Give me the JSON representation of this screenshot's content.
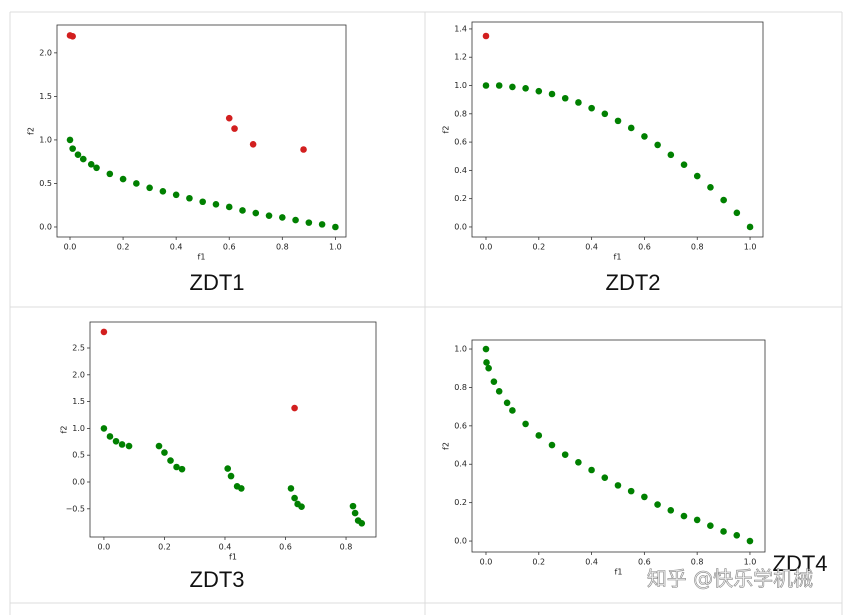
{
  "chart_data": [
    {
      "type": "scatter",
      "title": "ZDT1",
      "xlabel": "f1",
      "ylabel": "f2",
      "xlim": [
        -0.049,
        1.04
      ],
      "ylim": [
        -0.115,
        2.32
      ],
      "xticks": [
        {
          "value": 0,
          "label": "0.0"
        },
        0.2,
        0.4,
        0.6,
        0.8,
        {
          "value": 1,
          "label": "1.0"
        }
      ],
      "yticks": [
        {
          "value": 0,
          "label": "0.0"
        },
        0.5,
        {
          "value": 1,
          "label": "1.0"
        },
        1.5,
        {
          "value": 2,
          "label": "2.0"
        }
      ],
      "series": [
        {
          "color": "#008000",
          "x": [
            0,
            0.01,
            0.03,
            0.05,
            0.08,
            0.1,
            0.15,
            0.2,
            0.25,
            0.3,
            0.35,
            0.4,
            0.45,
            0.5,
            0.55,
            0.6,
            0.65,
            0.7,
            0.75,
            0.8,
            0.85,
            0.9,
            0.95,
            1.0
          ],
          "values": [
            1,
            0.9,
            0.83,
            0.78,
            0.72,
            0.68,
            0.61,
            0.55,
            0.5,
            0.45,
            0.41,
            0.37,
            0.33,
            0.29,
            0.26,
            0.23,
            0.19,
            0.16,
            0.13,
            0.11,
            0.08,
            0.05,
            0.03,
            0
          ]
        },
        {
          "color": "#d21f1f",
          "x": [
            0,
            0.01,
            0.6,
            0.62,
            0.69,
            0.88
          ],
          "values": [
            2.2,
            2.19,
            1.25,
            1.13,
            0.95,
            0.89
          ]
        }
      ]
    },
    {
      "type": "scatter",
      "title": "ZDT2",
      "xlabel": "f1",
      "ylabel": "f2",
      "xlim": [
        -0.053,
        1.049
      ],
      "ylim": [
        -0.071,
        1.449
      ],
      "xticks": [
        {
          "value": 0,
          "label": "0.0"
        },
        0.2,
        0.4,
        0.6,
        0.8,
        {
          "value": 1,
          "label": "1.0"
        }
      ],
      "yticks": [
        {
          "value": 0,
          "label": "0.0"
        },
        0.2,
        0.4,
        0.6,
        0.8,
        {
          "value": 1,
          "label": "1.0"
        },
        1.2,
        1.4
      ],
      "series": [
        {
          "color": "#008000",
          "x": [
            0,
            0.05,
            0.1,
            0.15,
            0.2,
            0.25,
            0.3,
            0.35,
            0.4,
            0.45,
            0.5,
            0.55,
            0.6,
            0.65,
            0.7,
            0.75,
            0.8,
            0.85,
            0.9,
            0.95,
            1.0
          ],
          "values": [
            1,
            1,
            0.99,
            0.98,
            0.96,
            0.94,
            0.91,
            0.88,
            0.84,
            0.8,
            0.75,
            0.7,
            0.64,
            0.58,
            0.51,
            0.44,
            0.36,
            0.28,
            0.19,
            0.1,
            0
          ]
        },
        {
          "color": "#d21f1f",
          "x": [
            0
          ],
          "values": [
            1.35
          ]
        }
      ]
    },
    {
      "type": "scatter",
      "title": "ZDT3",
      "xlabel": "f1",
      "ylabel": "f2",
      "xlim": [
        -0.046,
        0.899
      ],
      "ylim": [
        -1.026,
        2.985
      ],
      "xticks": [
        {
          "value": 0,
          "label": "0.0"
        },
        0.2,
        0.4,
        0.6,
        0.8
      ],
      "yticks": [
        {
          "value": -0.5,
          "label": "−0.5"
        },
        {
          "value": 0,
          "label": "0.0"
        },
        0.5,
        {
          "value": 1,
          "label": "1.0"
        },
        1.5,
        {
          "value": 2,
          "label": "2.0"
        },
        2.5
      ],
      "series": [
        {
          "color": "#008000",
          "x": [
            0,
            0.02,
            0.04,
            0.06,
            0.083,
            0.182,
            0.2,
            0.22,
            0.24,
            0.258,
            0.409,
            0.42,
            0.44,
            0.454,
            0.618,
            0.63,
            0.64,
            0.653,
            0.823,
            0.83,
            0.84,
            0.852
          ],
          "values": [
            1,
            0.85,
            0.76,
            0.7,
            0.67,
            0.67,
            0.55,
            0.4,
            0.28,
            0.24,
            0.25,
            0.11,
            -0.08,
            -0.12,
            -0.12,
            -0.3,
            -0.41,
            -0.46,
            -0.45,
            -0.58,
            -0.72,
            -0.77
          ]
        },
        {
          "color": "#d21f1f",
          "x": [
            0,
            0.63
          ],
          "values": [
            2.8,
            1.38
          ]
        }
      ]
    },
    {
      "type": "scatter",
      "title": "ZDT4",
      "xlabel": "f1",
      "ylabel": "f2",
      "xlim": [
        -0.053,
        1.057
      ],
      "ylim": [
        -0.057,
        1.047
      ],
      "xticks": [
        {
          "value": 0,
          "label": "0.0"
        },
        0.2,
        0.4,
        0.6,
        0.8,
        {
          "value": 1,
          "label": "1.0"
        }
      ],
      "yticks": [
        {
          "value": 0,
          "label": "0.0"
        },
        0.2,
        0.4,
        0.6,
        0.8,
        {
          "value": 1,
          "label": "1.0"
        }
      ],
      "series": [
        {
          "color": "#008000",
          "x": [
            0,
            0.002,
            0.01,
            0.03,
            0.05,
            0.08,
            0.1,
            0.15,
            0.2,
            0.25,
            0.3,
            0.35,
            0.4,
            0.45,
            0.5,
            0.55,
            0.6,
            0.65,
            0.7,
            0.75,
            0.8,
            0.85,
            0.9,
            0.95,
            1.0
          ],
          "values": [
            1,
            0.93,
            0.9,
            0.83,
            0.78,
            0.72,
            0.68,
            0.61,
            0.55,
            0.5,
            0.45,
            0.41,
            0.37,
            0.33,
            0.29,
            0.26,
            0.23,
            0.19,
            0.16,
            0.13,
            0.11,
            0.08,
            0.05,
            0.03,
            0
          ]
        }
      ]
    }
  ],
  "watermark": "知乎 @快乐学机械"
}
